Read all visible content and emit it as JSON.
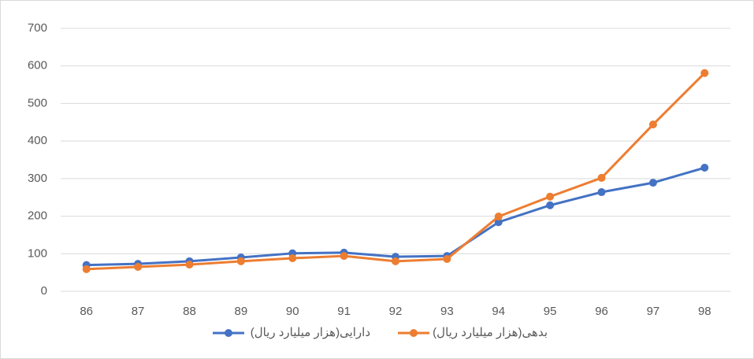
{
  "chart_data": {
    "type": "line",
    "categories": [
      "86",
      "87",
      "88",
      "89",
      "90",
      "91",
      "92",
      "93",
      "94",
      "95",
      "96",
      "97",
      "98"
    ],
    "series": [
      {
        "name": "دارایی(هزار میلیارد ریال)",
        "color": "#4472c4",
        "values": [
          70,
          73,
          80,
          90,
          101,
          103,
          92,
          94,
          184,
          229,
          264,
          289,
          329
        ]
      },
      {
        "name": "بدهی(هزار میلیارد ریال)",
        "color": "#ed7d31",
        "values": [
          59,
          65,
          71,
          80,
          88,
          94,
          80,
          86,
          199,
          252,
          302,
          444,
          581
        ]
      }
    ],
    "ylim": [
      0,
      700
    ],
    "yticks": [
      0,
      100,
      200,
      300,
      400,
      500,
      600,
      700
    ],
    "grid": true,
    "legend": "bottom"
  }
}
